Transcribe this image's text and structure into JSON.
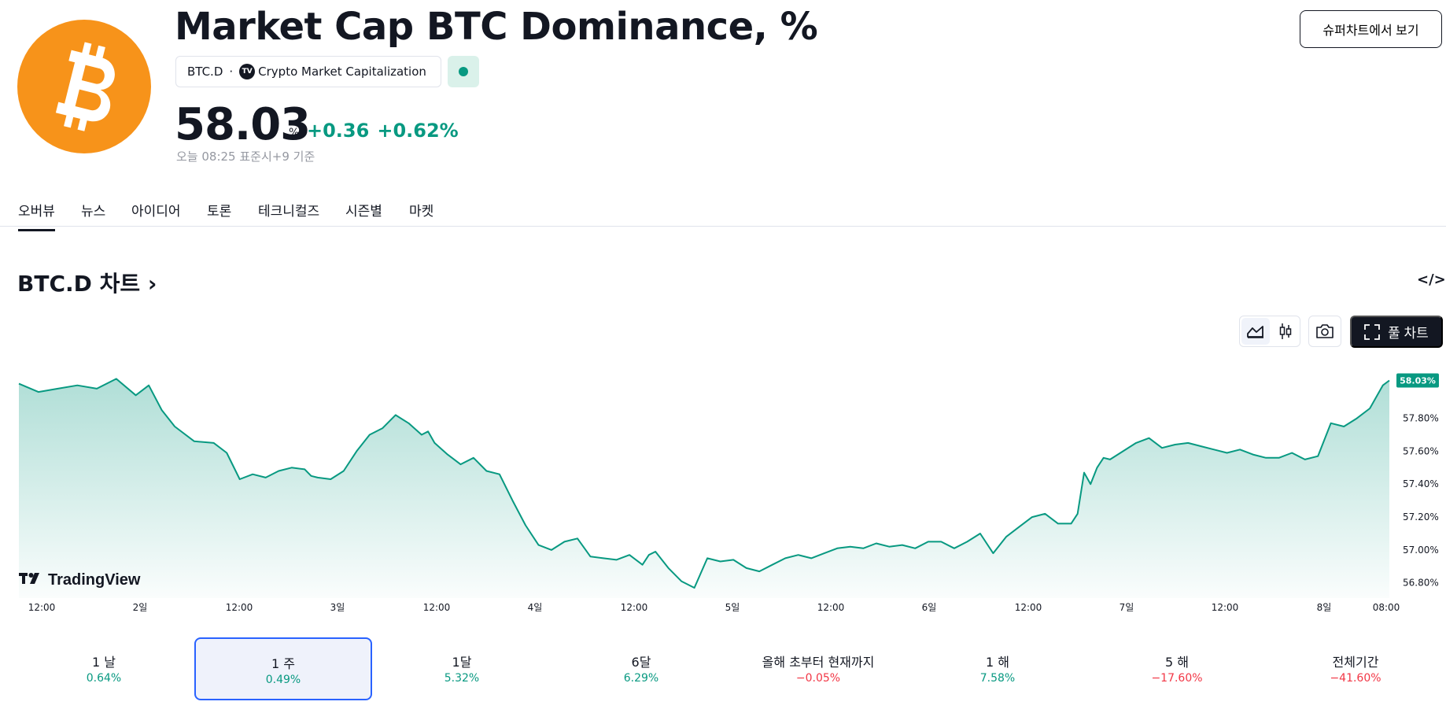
{
  "header": {
    "title": "Market Cap BTC Dominance, %",
    "symbol": "BTC.D",
    "separator": "·",
    "source_badge": "TV",
    "source": "Crypto Market Capitalization",
    "price": "58.03",
    "price_unit": "%",
    "change_abs": "+0.36",
    "change_pct": "+0.62%",
    "timestamp": "오늘 08:25 표준시+9 기준",
    "supercharts_button": "슈퍼차트에서 보기"
  },
  "tabs": [
    "오버뷰",
    "뉴스",
    "아이디어",
    "토론",
    "테크니컬즈",
    "시즌별",
    "마켓"
  ],
  "chart_section": {
    "title": "BTC.D 차트",
    "chevron": "›",
    "embed": "</>",
    "full_chart_button": "풀 차트",
    "watermark": "TradingView"
  },
  "colors": {
    "accent": "#089981",
    "negative": "#f23645",
    "brand_orange": "#f7931a",
    "dark": "#131722",
    "selected_border": "#2962ff"
  },
  "icons": [
    "bitcoin-icon",
    "tradingview-icon",
    "area-chart-icon",
    "candles-icon",
    "camera-icon",
    "fullscreen-icon",
    "code-icon"
  ],
  "chart_data": {
    "type": "area",
    "title": "",
    "x_tick_labels": [
      "12:00",
      "2일",
      "12:00",
      "3일",
      "12:00",
      "4일",
      "12:00",
      "5일",
      "12:00",
      "6일",
      "12:00",
      "7일",
      "12:00",
      "8일",
      "08:00"
    ],
    "y_tick_labels": [
      "57.80%",
      "57.60%",
      "57.40%",
      "57.20%",
      "57.00%",
      "56.80%"
    ],
    "ylim": [
      56.77,
      58.08
    ],
    "last_value_label": "58.03%",
    "grid": false,
    "series": [
      {
        "x_hours": [
          0,
          3,
          6,
          9,
          12,
          15,
          18,
          20,
          22,
          24,
          27,
          30,
          32,
          34,
          36,
          38,
          40,
          42,
          44,
          45,
          46,
          48,
          50,
          52,
          54,
          56,
          58,
          60,
          62,
          63,
          64,
          66,
          68,
          70,
          72,
          74,
          76,
          78,
          80,
          82,
          84,
          86,
          88,
          90,
          92,
          94,
          96,
          97,
          98,
          100,
          102,
          104,
          106,
          108,
          110,
          112,
          114,
          116,
          118,
          120,
          122,
          124,
          126,
          128,
          130,
          132,
          134,
          136,
          138,
          140,
          142,
          144,
          146,
          148,
          150,
          152,
          154,
          156,
          158,
          160,
          162,
          163,
          164,
          165,
          166,
          167,
          168,
          170,
          172,
          174,
          176,
          178,
          180,
          182,
          184,
          186,
          188,
          190,
          192,
          194,
          196,
          198,
          200,
          202,
          204,
          206,
          208,
          210,
          211
        ],
        "values": [
          58.01,
          57.96,
          57.98,
          58.0,
          57.98,
          58.04,
          57.94,
          58.0,
          57.85,
          57.75,
          57.66,
          57.65,
          57.59,
          57.43,
          57.46,
          57.44,
          57.48,
          57.5,
          57.49,
          57.45,
          57.44,
          57.43,
          57.48,
          57.6,
          57.7,
          57.74,
          57.82,
          57.77,
          57.7,
          57.72,
          57.65,
          57.58,
          57.52,
          57.56,
          57.48,
          57.46,
          57.3,
          57.15,
          57.03,
          57.0,
          57.05,
          57.07,
          56.96,
          56.95,
          56.94,
          56.97,
          56.91,
          56.97,
          56.99,
          56.89,
          56.81,
          56.77,
          56.95,
          56.93,
          56.94,
          56.89,
          56.87,
          56.91,
          56.95,
          56.97,
          56.95,
          56.98,
          57.01,
          57.02,
          57.01,
          57.04,
          57.02,
          57.03,
          57.01,
          57.05,
          57.05,
          57.01,
          57.05,
          57.1,
          56.98,
          57.08,
          57.14,
          57.2,
          57.22,
          57.16,
          57.16,
          57.22,
          57.47,
          57.4,
          57.5,
          57.56,
          57.55,
          57.6,
          57.65,
          57.68,
          57.62,
          57.64,
          57.65,
          57.63,
          57.61,
          57.59,
          57.61,
          57.58,
          57.56,
          57.56,
          57.59,
          57.55,
          57.57,
          57.77,
          57.75,
          57.8,
          57.86,
          58.0,
          58.03
        ]
      }
    ]
  },
  "periods": [
    {
      "label": "1 날",
      "value": "0.64%",
      "sign": "pos"
    },
    {
      "label": "1 주",
      "value": "0.49%",
      "sign": "pos",
      "selected": true
    },
    {
      "label": "1달",
      "value": "5.32%",
      "sign": "pos"
    },
    {
      "label": "6달",
      "value": "6.29%",
      "sign": "pos"
    },
    {
      "label": "올해 초부터 현재까지",
      "value": "−0.05%",
      "sign": "neg"
    },
    {
      "label": "1 해",
      "value": "7.58%",
      "sign": "pos"
    },
    {
      "label": "5 해",
      "value": "−17.60%",
      "sign": "neg"
    },
    {
      "label": "전체기간",
      "value": "−41.60%",
      "sign": "neg"
    }
  ]
}
